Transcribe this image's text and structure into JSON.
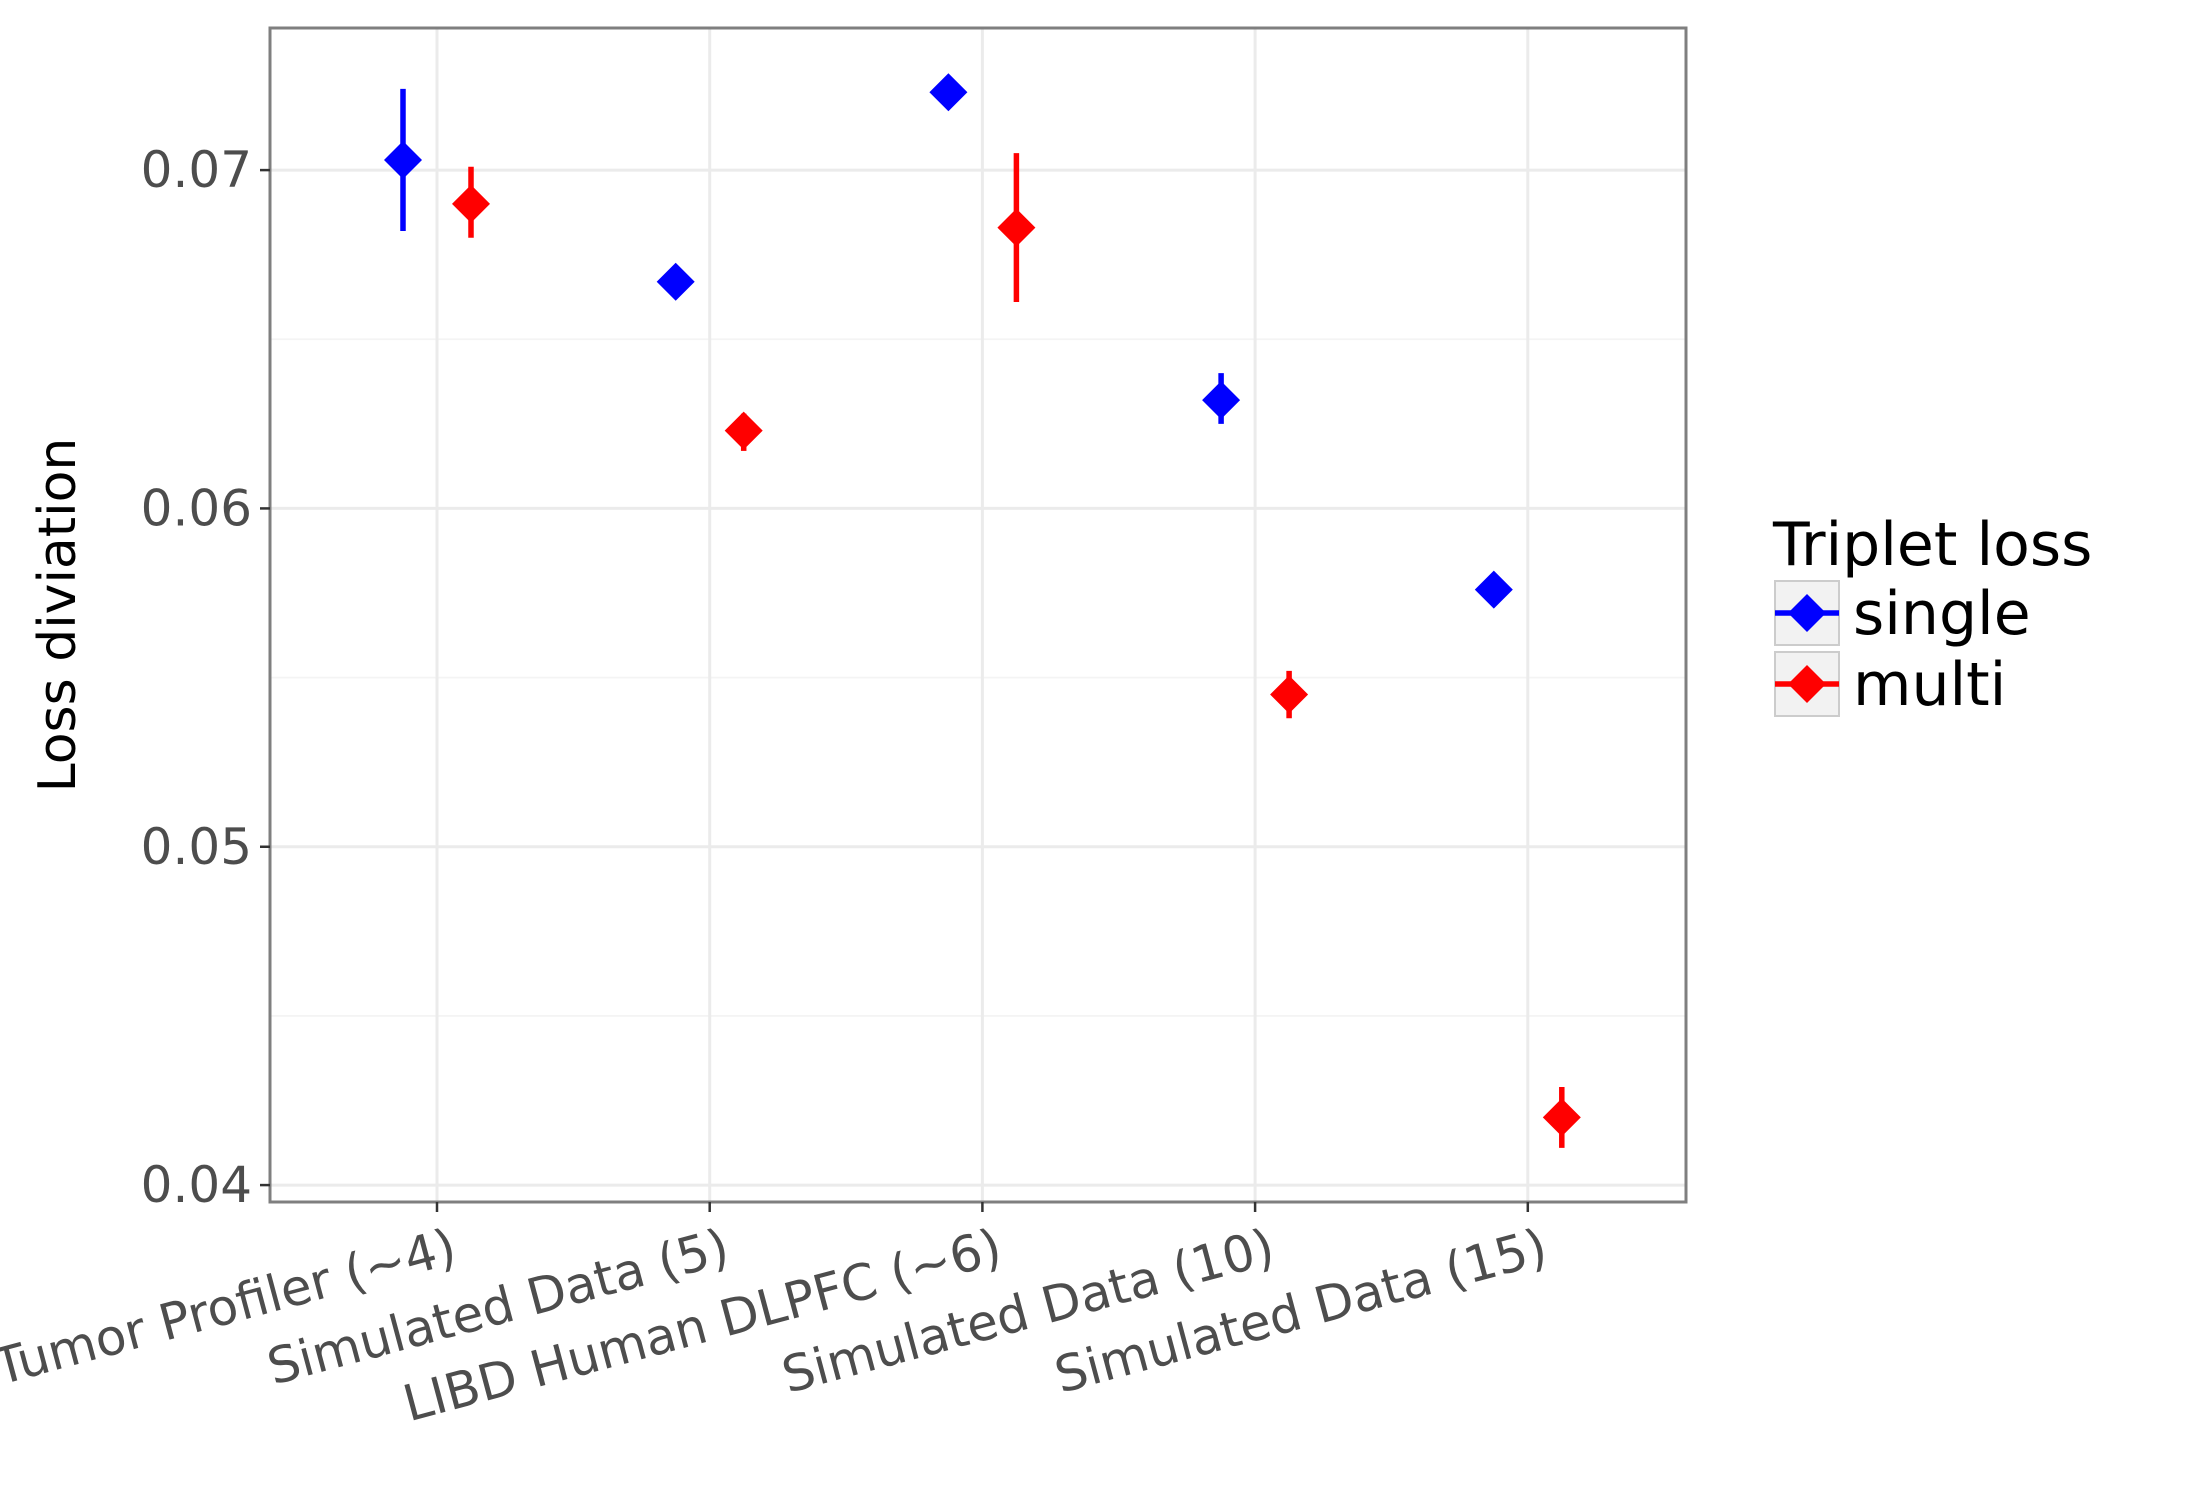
{
  "chart_data": {
    "type": "scatter",
    "title": "",
    "xlabel": "",
    "ylabel": "Loss diviation",
    "categories": [
      "Tumor Profiler (~4)",
      "Simulated Data (5)",
      "LIBD Human DLPFC (~6)",
      "Simulated Data (10)",
      "Simulated Data (15)"
    ],
    "ylim": [
      0.0395,
      0.0742
    ],
    "y_ticks": [
      "0.04",
      "0.05",
      "0.06",
      "0.07"
    ],
    "grid": true,
    "error_bars": true,
    "legend": {
      "title": "Triplet loss",
      "placement": "right"
    },
    "series": [
      {
        "name": "single",
        "color": "#0000ff",
        "marker": "diamond",
        "values": [
          0.0703,
          0.0667,
          0.0723,
          0.0632,
          0.0576
        ],
        "err_low": [
          0.0682,
          0.0667,
          0.0723,
          0.0625,
          0.0576
        ],
        "err_high": [
          0.0724,
          0.0667,
          0.0723,
          0.064,
          0.0576
        ]
      },
      {
        "name": "multi",
        "color": "#ff0000",
        "marker": "diamond",
        "values": [
          0.069,
          0.0623,
          0.0683,
          0.0545,
          0.042
        ],
        "err_low": [
          0.068,
          0.0617,
          0.0661,
          0.0538,
          0.0411
        ],
        "err_high": [
          0.0701,
          0.0628,
          0.0705,
          0.0552,
          0.0429
        ]
      }
    ]
  }
}
